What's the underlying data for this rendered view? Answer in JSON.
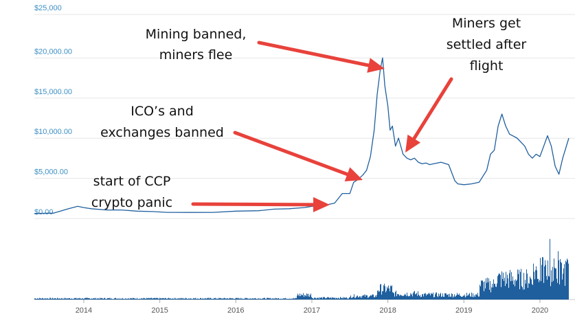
{
  "chart_data": [
    {
      "type": "line",
      "yticks": [
        "$0.00",
        "$5,000.00",
        "$10,000.00",
        "$15,000.00",
        "$20,000.00",
        "$25,000"
      ],
      "ylim": [
        0,
        25000
      ],
      "x_range": [
        2013.35,
        2020.38
      ],
      "grid": true,
      "color": "#1f5f9e",
      "series": [
        {
          "x": [
            2013.35,
            2013.6,
            2013.8,
            2013.92,
            2014.0,
            2014.1,
            2014.3,
            2014.5,
            2014.7,
            2014.9,
            2015.1,
            2015.4,
            2015.7,
            2016.0,
            2016.3,
            2016.5,
            2016.7,
            2016.9,
            2017.0,
            2017.1,
            2017.2,
            2017.3,
            2017.4,
            2017.5,
            2017.55,
            2017.6,
            2017.67,
            2017.72,
            2017.77,
            2017.82,
            2017.86,
            2017.9,
            2017.93,
            2017.96,
            2018.0,
            2018.03,
            2018.06,
            2018.1,
            2018.14,
            2018.2,
            2018.25,
            2018.3,
            2018.35,
            2018.4,
            2018.45,
            2018.5,
            2018.55,
            2018.6,
            2018.7,
            2018.8,
            2018.88,
            2018.92,
            2019.0,
            2019.1,
            2019.2,
            2019.3,
            2019.35,
            2019.4,
            2019.45,
            2019.5,
            2019.55,
            2019.6,
            2019.7,
            2019.8,
            2019.85,
            2019.9,
            2019.95,
            2020.0,
            2020.05,
            2020.1,
            2020.15,
            2020.2,
            2020.25,
            2020.3,
            2020.38
          ],
          "y": [
            100,
            150,
            700,
            1000,
            850,
            700,
            550,
            550,
            400,
            350,
            250,
            240,
            250,
            400,
            450,
            650,
            700,
            850,
            1000,
            1100,
            1200,
            1400,
            2600,
            2600,
            4000,
            4300,
            4900,
            5500,
            7200,
            10500,
            15000,
            18000,
            19500,
            16000,
            13500,
            10500,
            11000,
            8500,
            9500,
            7500,
            7000,
            6800,
            7000,
            6500,
            6300,
            6400,
            6200,
            6300,
            6500,
            6200,
            4200,
            3800,
            3700,
            3800,
            4000,
            5500,
            7500,
            8000,
            11000,
            12500,
            11000,
            10000,
            9500,
            8500,
            7500,
            7000,
            7500,
            7200,
            8500,
            9800,
            8500,
            6000,
            5000,
            7000,
            9500
          ]
        }
      ]
    },
    {
      "type": "bar",
      "values": [],
      "xticks": [
        "2014",
        "2015",
        "2016",
        "2017",
        "2018",
        "2019",
        "2020"
      ],
      "color": "#1f5f9e"
    }
  ],
  "annotations": [
    {
      "lines": [
        "Mining banned,",
        "miners flee"
      ]
    },
    {
      "lines": [
        "Miners get",
        "settled after",
        "flight"
      ]
    },
    {
      "lines": [
        "ICO’s  and",
        "exchanges banned"
      ]
    },
    {
      "lines": [
        "start of CCP",
        "crypto panic"
      ]
    }
  ],
  "colors": {
    "line": "#1f5f9e",
    "arrow": "#e8423b",
    "ytick": "#3d8fc4",
    "grid": "#e6e6e6"
  }
}
